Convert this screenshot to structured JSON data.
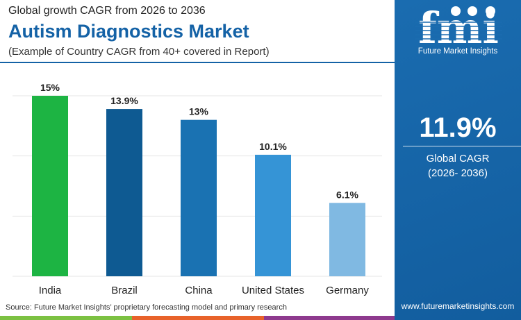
{
  "header": {
    "subtitle": "Global growth CAGR from 2026 to 2036",
    "title": "Autism Diagnostics Market",
    "note": "(Example of Country CAGR from 40+ covered in Report)"
  },
  "chart_data": {
    "type": "bar",
    "categories": [
      "India",
      "Brazil",
      "China",
      "United States",
      "Germany"
    ],
    "values": [
      15,
      13.9,
      13,
      10.1,
      6.1
    ],
    "labels": [
      "15%",
      "13.9%",
      "13%",
      "10.1%",
      "6.1%"
    ],
    "colors": [
      "#1db443",
      "#0e5a92",
      "#1a72b2",
      "#3594d6",
      "#80b9e2"
    ],
    "ylim": [
      0,
      15
    ],
    "grid": true
  },
  "source": "Source: Future Market Insights’ proprietary forecasting model and primary research",
  "panel": {
    "logo_text": "fmi",
    "brand": "Future Market Insights",
    "cagr_value": "11.9%",
    "cagr_label": "Global CAGR",
    "cagr_period": "(2026- 2036)",
    "url": "www.futuremarketinsights.com"
  },
  "stripe_colors": [
    "#7cc142",
    "#e8622a",
    "#8e3a8e"
  ]
}
